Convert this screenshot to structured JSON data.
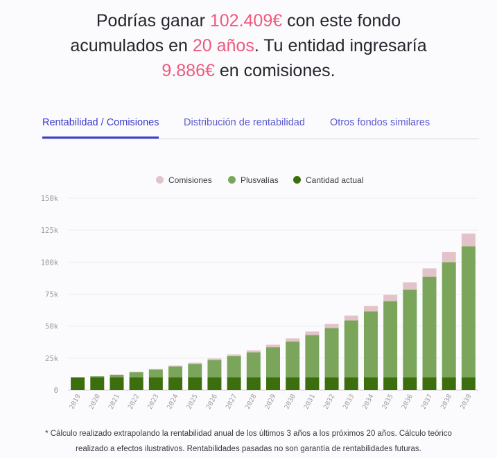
{
  "headline": {
    "p1": "Podrías ganar ",
    "amount": "102.409€",
    "p2": " con este fondo",
    "p3": "acumulados en ",
    "years": "20 años",
    "p4": ". Tu entidad ingresaría",
    "fees": "9.886€",
    "p5": " en comisiones."
  },
  "tabs": [
    {
      "label": "Rentabilidad / Comisiones",
      "active": true
    },
    {
      "label": "Distribución de rentabilidad",
      "active": false
    },
    {
      "label": "Otros fondos similares",
      "active": false
    }
  ],
  "colors": {
    "accent": "#ec5a7d",
    "tab": "#3d3dd0",
    "comisiones": "#e2c3c8",
    "plusvalias": "#7aa55a",
    "cantidad": "#3d6e0d"
  },
  "chart_data": {
    "type": "bar",
    "stacked": true,
    "legend": [
      "Comisiones",
      "Plusvalías",
      "Cantidad actual"
    ],
    "categories": [
      "2019",
      "2020",
      "2021",
      "2022",
      "2023",
      "2024",
      "2025",
      "2026",
      "2027",
      "2028",
      "2029",
      "2030",
      "2031",
      "2032",
      "2033",
      "2034",
      "2035",
      "2036",
      "2037",
      "2038",
      "2039"
    ],
    "series": [
      {
        "name": "Cantidad actual",
        "values": [
          10000,
          10000,
          10000,
          10000,
          10000,
          10000,
          10000,
          10000,
          10000,
          10000,
          10000,
          10000,
          10000,
          10000,
          10000,
          10000,
          10000,
          10000,
          10000,
          10000,
          10000
        ]
      },
      {
        "name": "Plusvalías",
        "values": [
          0,
          800,
          2000,
          4000,
          6000,
          8500,
          10500,
          13500,
          16500,
          19500,
          23500,
          28000,
          33000,
          38500,
          44500,
          51500,
          59500,
          68500,
          78500,
          90000,
          102409
        ]
      },
      {
        "name": "Comisiones",
        "values": [
          0,
          0,
          200,
          300,
          500,
          700,
          900,
          1200,
          1400,
          1600,
          2000,
          2400,
          2800,
          3200,
          3700,
          4200,
          4900,
          5700,
          6600,
          7900,
          9886
        ]
      }
    ],
    "yticks": [
      "0",
      "25k",
      "50k",
      "75k",
      "100k",
      "125k",
      "150k"
    ],
    "ylim": [
      0,
      150000
    ],
    "grid": true
  },
  "footnote": {
    "line1": "* Cálculo realizado extrapolando la rentabilidad anual de los últimos 3 años a los próximos 20 años. Cálculo teórico",
    "line2": "realizado a efectos ilustrativos. Rentabilidades pasadas no son garantía de rentabilidades futuras."
  }
}
